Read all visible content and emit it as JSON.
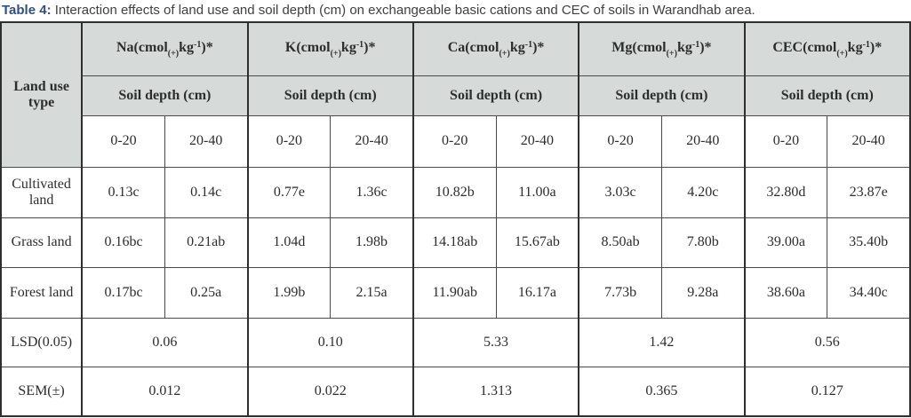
{
  "caption": {
    "label": "Table 4:",
    "text": " Interaction effects of land use and soil depth (cm) on exchangeable basic cations and CEC of soils in Warandhab area."
  },
  "colors": {
    "header_bg": "#d6dad8",
    "caption_accent": "#2e4f86",
    "border_dark": "#2f2f2f",
    "border_inner": "#4a4a4a"
  },
  "table": {
    "corner_header": "Land use type",
    "depth_header": "Soil depth (cm)",
    "groups": [
      {
        "prefix": "Na(cmol",
        "sub": "(+)",
        "mid": "kg",
        "sup": "-1",
        "suffix": ")*",
        "subheader": "Soil depth (cm)",
        "depths": [
          "0-20",
          "20-40"
        ]
      },
      {
        "prefix": "K(cmol",
        "sub": "(+)",
        "mid": "kg",
        "sup": "-1",
        "suffix": ")*",
        "subheader": "Soil depth (cm)",
        "depths": [
          "0-20",
          "20-40"
        ]
      },
      {
        "prefix": "Ca(cmol",
        "sub": "(+)",
        "mid": "kg",
        "sup": "-1",
        "suffix": ")*",
        "subheader": "Soil depth (cm)",
        "depths": [
          "0-20",
          "20-40"
        ]
      },
      {
        "prefix": "Mg(cmol",
        "sub": "(+)",
        "mid": "kg",
        "sup": "-1",
        "suffix": ")*",
        "subheader": "Soil depth (cm)",
        "depths": [
          "0-20",
          "20-40"
        ]
      },
      {
        "prefix": "CEC(cmol",
        "sub": "(+)",
        "mid": "kg",
        "sup": "-1",
        "suffix": ")*",
        "subheader": "Soil depth (cm)",
        "depths": [
          "0-20",
          "20-40"
        ]
      }
    ],
    "rows": [
      {
        "label": "Cultivated land",
        "values": [
          "0.13c",
          "0.14c",
          "0.77e",
          "1.36c",
          "10.82b",
          "11.00a",
          "3.03c",
          "4.20c",
          "32.80d",
          "23.87e"
        ]
      },
      {
        "label": "Grass land",
        "values": [
          "0.16bc",
          "0.21ab",
          "1.04d",
          "1.98b",
          "14.18ab",
          "15.67ab",
          "8.50ab",
          "7.80b",
          "39.00a",
          "35.40b"
        ]
      },
      {
        "label": "Forest land",
        "values": [
          "0.17bc",
          "0.25a",
          "1.99b",
          "2.15a",
          "11.90ab",
          "16.17a",
          "7.73b",
          "9.28a",
          "38.60a",
          "34.40c"
        ]
      }
    ],
    "summary_rows": [
      {
        "label": "LSD(0.05)",
        "values": [
          "0.06",
          "0.10",
          "5.33",
          "1.42",
          "0.56"
        ]
      },
      {
        "label": "SEM(±)",
        "values": [
          "0.012",
          "0.022",
          "1.313",
          "0.365",
          "0.127"
        ]
      }
    ]
  }
}
